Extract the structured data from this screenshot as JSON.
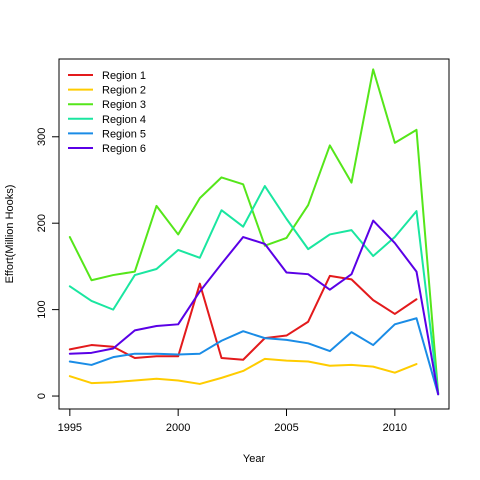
{
  "chart_data": {
    "type": "line",
    "title": "",
    "xlabel": "Year",
    "ylabel": "Effort(Million Hooks)",
    "xlim": [
      1994.5,
      2012.5
    ],
    "ylim": [
      -15,
      390
    ],
    "x_ticks": [
      1995,
      2000,
      2005,
      2010
    ],
    "y_ticks": [
      0,
      100,
      200,
      300
    ],
    "grid": false,
    "legend_position": "top-left",
    "x": [
      1995,
      1996,
      1997,
      1998,
      1999,
      2000,
      2001,
      2002,
      2003,
      2004,
      2005,
      2006,
      2007,
      2008,
      2009,
      2010,
      2011,
      2012
    ],
    "series": [
      {
        "name": "Region 1",
        "color": "#E31A1C",
        "values": [
          54,
          59,
          57,
          44,
          46,
          46,
          130,
          44,
          42,
          67,
          70,
          86,
          139,
          135,
          111,
          95,
          112,
          null
        ]
      },
      {
        "name": "Region 2",
        "color": "#FFCC00",
        "values": [
          23,
          15,
          16,
          18,
          20,
          18,
          14,
          21,
          29,
          43,
          41,
          40,
          35,
          36,
          34,
          27,
          37,
          null
        ]
      },
      {
        "name": "Region 3",
        "color": "#55E61A",
        "values": [
          184,
          134,
          140,
          144,
          220,
          187,
          229,
          253,
          245,
          174,
          183,
          221,
          290,
          247,
          378,
          293,
          308,
          3
        ]
      },
      {
        "name": "Region 4",
        "color": "#1AE6A0",
        "values": [
          127,
          110,
          100,
          140,
          147,
          169,
          160,
          215,
          196,
          243,
          205,
          170,
          187,
          192,
          162,
          184,
          214,
          3
        ]
      },
      {
        "name": "Region 5",
        "color": "#1A8CE6",
        "values": [
          40,
          36,
          45,
          49,
          49,
          48,
          49,
          64,
          75,
          67,
          65,
          61,
          52,
          74,
          59,
          83,
          90,
          2
        ]
      },
      {
        "name": "Region 6",
        "color": "#5A00E6",
        "values": [
          49,
          50,
          55,
          76,
          81,
          83,
          121,
          153,
          184,
          176,
          143,
          141,
          123,
          141,
          203,
          177,
          144,
          2
        ]
      }
    ]
  }
}
